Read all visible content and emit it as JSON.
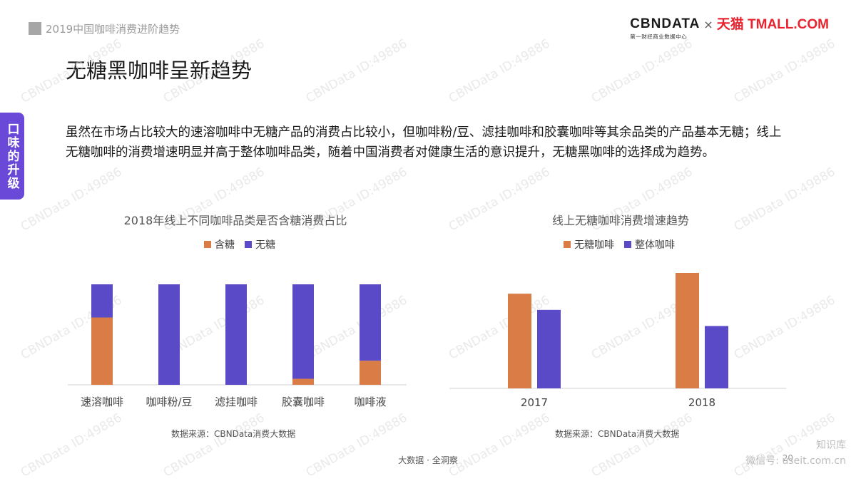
{
  "header": {
    "breadcrumb": "2019中国咖啡消费进阶趋势",
    "cbn_logo": "CBNDATA",
    "cbn_sub": "第一财经商业数据中心",
    "times": "×",
    "tmall_logo": "天猫 TMALL.COM"
  },
  "page_title": "无糖黑咖啡呈新趋势",
  "side_tab": "口味的升级",
  "paragraph": "虽然在市场占比较大的速溶咖啡中无糖产品的消费占比较小，但咖啡粉/豆、滤挂咖啡和胶囊咖啡等其余品类的产品基本无糖；线上无糖咖啡的消费增速明显并高于整体咖啡品类，随着中国消费者对健康生活的意识提升，无糖黑咖啡的选择成为趋势。",
  "colors": {
    "orange": "#d97c45",
    "purple": "#5b4ac8",
    "accent": "#6a49d8"
  },
  "watermark": "CBNData ID:49886",
  "chart_data": [
    {
      "type": "bar",
      "stacked": true,
      "title": "2018年线上不同咖啡品类是否含糖消费占比",
      "categories": [
        "速溶咖啡",
        "咖啡粉/豆",
        "滤挂咖啡",
        "胶囊咖啡",
        "咖啡液"
      ],
      "series": [
        {
          "name": "含糖",
          "values": [
            67,
            0,
            0,
            6,
            24
          ]
        },
        {
          "name": "无糖",
          "values": [
            33,
            100,
            100,
            94,
            76
          ]
        }
      ],
      "ylim": [
        0,
        100
      ],
      "source": "数据来源：CBNData消费大数据"
    },
    {
      "type": "bar",
      "title": "线上无糖咖啡消费增速趋势",
      "categories": [
        "2017",
        "2018"
      ],
      "series": [
        {
          "name": "无糖咖啡",
          "values": [
            82,
            100
          ]
        },
        {
          "name": "整体咖啡",
          "values": [
            68,
            54
          ]
        }
      ],
      "ylim": [
        0,
        100
      ],
      "source": "数据来源：CBNData消费大数据"
    }
  ],
  "footer": {
    "center": "大数据 · 全洞察",
    "page_number": "20",
    "credit_line1": "知识库",
    "credit_line2": "微信号: useit.com.cn"
  }
}
